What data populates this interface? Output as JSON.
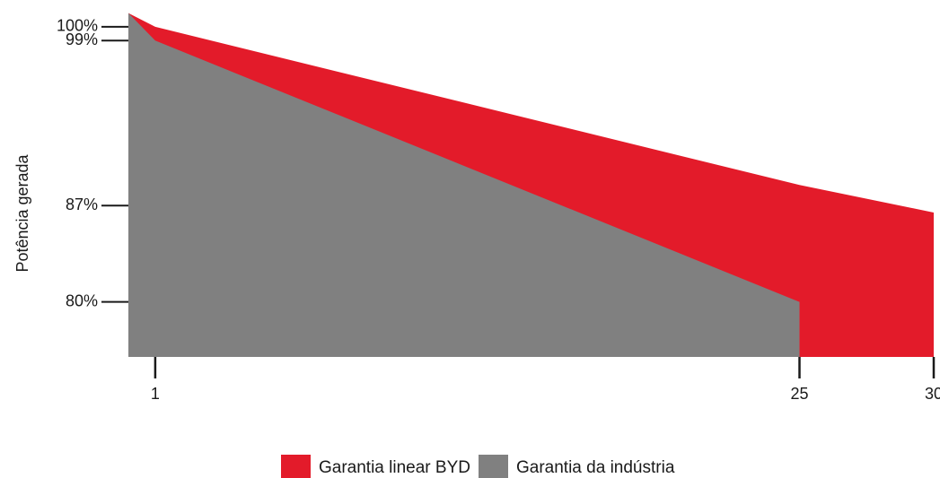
{
  "chart_data": {
    "type": "area",
    "ylabel": "Potência gerada",
    "xlabel": "",
    "y_ticks": [
      {
        "value": 100,
        "label": "100%"
      },
      {
        "value": 99,
        "label": "99%"
      },
      {
        "value": 87,
        "label": "87%"
      },
      {
        "value": 80,
        "label": "80%"
      }
    ],
    "x_ticks": [
      {
        "value": 1,
        "label": "1"
      },
      {
        "value": 25,
        "label": "25"
      },
      {
        "value": 30,
        "label": "30"
      }
    ],
    "xlim": [
      0,
      30
    ],
    "ylim": [
      76,
      101.3
    ],
    "grid": false,
    "legend_position": "bottom-center",
    "series": [
      {
        "name": "Garantia linear BYD",
        "color": "#E31B2A",
        "points": [
          [
            0,
            101
          ],
          [
            1,
            100
          ],
          [
            25,
            88.5
          ],
          [
            30,
            86.5
          ]
        ]
      },
      {
        "name": "Garantia da indústria",
        "color": "#808080",
        "points": [
          [
            0,
            101
          ],
          [
            1,
            99
          ],
          [
            25,
            80
          ]
        ]
      }
    ]
  }
}
